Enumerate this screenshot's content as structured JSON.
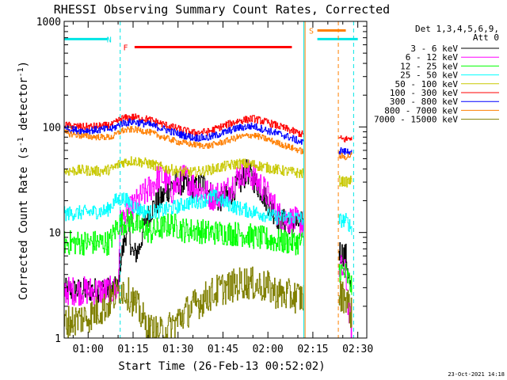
{
  "chart_data": {
    "type": "line",
    "title": "RHESSI Observing Summary Count Rates, Corrected",
    "xlabel": "Start Time (26-Feb-13 00:52:02)",
    "ylabel": "Corrected Count Rate (s^-1 detector^-1)",
    "ylabel_main": "Corrected Count Rate (s",
    "ylabel_sup1": "-1",
    "ylabel_mid": " detector",
    "ylabel_sup2": "-1",
    "ylabel_end": ")",
    "y_scale": "log",
    "ylim": [
      1,
      1000
    ],
    "xlim_minutes": [
      52.0,
      153.0
    ],
    "x_ticks": [
      {
        "t": 60,
        "label": "01:00"
      },
      {
        "t": 75,
        "label": "01:15"
      },
      {
        "t": 90,
        "label": "01:30"
      },
      {
        "t": 105,
        "label": "01:45"
      },
      {
        "t": 120,
        "label": "02:00"
      },
      {
        "t": 135,
        "label": "02:15"
      },
      {
        "t": 150,
        "label": "02:30"
      }
    ],
    "y_ticks": [
      {
        "v": 1,
        "label": "1"
      },
      {
        "v": 10,
        "label": "10"
      },
      {
        "v": 100,
        "label": "100"
      },
      {
        "v": 1000,
        "label": "1000"
      }
    ],
    "legend_header": [
      "Det 1,3,4,5,6,9,",
      "Att 0"
    ],
    "legend_placement": "right",
    "footer": "23-Oct-2021 14:18",
    "flags": [
      {
        "label": "N",
        "color": "#00e5e5",
        "segments": [
          [
            52.0,
            66.5
          ],
          [
            136.5,
            150.0
          ]
        ],
        "y": 680,
        "label_t": 67.0
      },
      {
        "label": "F",
        "color": "#ff0000",
        "segments": [
          [
            75.5,
            128.0
          ]
        ],
        "y": 570,
        "label_t": 72.5
      },
      {
        "label": "S",
        "color": "#ff7f00",
        "segments": [
          [
            136.5,
            146.0
          ]
        ],
        "y": 820,
        "label_t": 134.5
      }
    ],
    "gaps": [
      [
        132.0,
        143.5
      ]
    ],
    "vlines": [
      {
        "t": 70.7,
        "color": "#00e5e5",
        "dashed": true
      },
      {
        "t": 132.0,
        "color": "#00e5e5",
        "dashed": false
      },
      {
        "t": 132.4,
        "color": "#ff7f00",
        "dashed": false
      },
      {
        "t": 143.5,
        "color": "#ff7f00",
        "dashed": true
      },
      {
        "t": 148.6,
        "color": "#00e5e5",
        "dashed": true
      }
    ],
    "series": [
      {
        "name": "3 - 6 keV",
        "color": "#000000",
        "noise": 0.12,
        "points": [
          [
            52,
            2.8
          ],
          [
            70,
            2.9
          ],
          [
            70.5,
            5
          ],
          [
            72,
            8
          ],
          [
            73,
            12
          ],
          [
            75,
            6
          ],
          [
            77,
            7
          ],
          [
            79,
            13
          ],
          [
            82,
            18
          ],
          [
            85,
            22
          ],
          [
            88,
            28
          ],
          [
            90,
            30
          ],
          [
            93,
            28
          ],
          [
            96,
            26
          ],
          [
            98,
            30
          ],
          [
            100,
            25
          ],
          [
            103,
            20
          ],
          [
            105,
            21
          ],
          [
            108,
            24
          ],
          [
            111,
            30
          ],
          [
            113,
            38
          ],
          [
            115,
            32
          ],
          [
            118,
            24
          ],
          [
            121,
            17
          ],
          [
            124,
            13
          ],
          [
            132,
            12
          ],
          [
            146,
            6
          ],
          [
            148,
            2.3
          ]
        ]
      },
      {
        "name": "6 - 12 keV",
        "color": "#ff00ff",
        "noise": 0.14,
        "points": [
          [
            52,
            2.8
          ],
          [
            70,
            2.8
          ],
          [
            70.5,
            12
          ],
          [
            74,
            16
          ],
          [
            78,
            22
          ],
          [
            81,
            27
          ],
          [
            84,
            35
          ],
          [
            86,
            30
          ],
          [
            88,
            25
          ],
          [
            92,
            34
          ],
          [
            95,
            28
          ],
          [
            98,
            25
          ],
          [
            101,
            22
          ],
          [
            104,
            23
          ],
          [
            107,
            26
          ],
          [
            110,
            34
          ],
          [
            112,
            38
          ],
          [
            115,
            34
          ],
          [
            118,
            27
          ],
          [
            121,
            20
          ],
          [
            124,
            14
          ],
          [
            132,
            12
          ],
          [
            146,
            4
          ],
          [
            147,
            1.7
          ],
          [
            148,
            1.2
          ]
        ]
      },
      {
        "name": "12 - 25 keV",
        "color": "#00ff00",
        "noise": 0.12,
        "points": [
          [
            52,
            8
          ],
          [
            67,
            8
          ],
          [
            70,
            12
          ],
          [
            74,
            13
          ],
          [
            78,
            11
          ],
          [
            81,
            10
          ],
          [
            84,
            11
          ],
          [
            88,
            12
          ],
          [
            92,
            10.5
          ],
          [
            96,
            10.5
          ],
          [
            100,
            10
          ],
          [
            104,
            10
          ],
          [
            108,
            9.8
          ],
          [
            112,
            9.6
          ],
          [
            116,
            9
          ],
          [
            120,
            8.6
          ],
          [
            124,
            8.2
          ],
          [
            132,
            8
          ],
          [
            146,
            4
          ],
          [
            148,
            3
          ]
        ]
      },
      {
        "name": "25 - 50 keV",
        "color": "#00ffff",
        "noise": 0.07,
        "points": [
          [
            52,
            15
          ],
          [
            66,
            16
          ],
          [
            69,
            20
          ],
          [
            72,
            21
          ],
          [
            76,
            17
          ],
          [
            80,
            15.5
          ],
          [
            84,
            16
          ],
          [
            88,
            17
          ],
          [
            93,
            19
          ],
          [
            98,
            20
          ],
          [
            102,
            22
          ],
          [
            106,
            19
          ],
          [
            110,
            17
          ],
          [
            114,
            16
          ],
          [
            118,
            15
          ],
          [
            122,
            14
          ],
          [
            126,
            14
          ],
          [
            132,
            13.5
          ],
          [
            146,
            13
          ],
          [
            148,
            11
          ]
        ]
      },
      {
        "name": "50 - 100 keV",
        "color": "#c8c800",
        "noise": 0.05,
        "points": [
          [
            52,
            38
          ],
          [
            58,
            39
          ],
          [
            64,
            38
          ],
          [
            68,
            40
          ],
          [
            71,
            46
          ],
          [
            75,
            48
          ],
          [
            80,
            45
          ],
          [
            85,
            41
          ],
          [
            90,
            38
          ],
          [
            95,
            37
          ],
          [
            100,
            39
          ],
          [
            105,
            42
          ],
          [
            110,
            45
          ],
          [
            115,
            44
          ],
          [
            120,
            41
          ],
          [
            126,
            38
          ],
          [
            132,
            36
          ],
          [
            146,
            30
          ],
          [
            148,
            31
          ]
        ]
      },
      {
        "name": "100 - 300 keV",
        "color": "#ff0000",
        "noise": 0.035,
        "points": [
          [
            52,
            104
          ],
          [
            58,
            100
          ],
          [
            64,
            102
          ],
          [
            68,
            104
          ],
          [
            71,
            120
          ],
          [
            75,
            124
          ],
          [
            80,
            118
          ],
          [
            85,
            106
          ],
          [
            90,
            96
          ],
          [
            95,
            88
          ],
          [
            100,
            90
          ],
          [
            105,
            102
          ],
          [
            110,
            114
          ],
          [
            115,
            120
          ],
          [
            120,
            110
          ],
          [
            126,
            96
          ],
          [
            132,
            84
          ],
          [
            146,
            76
          ],
          [
            148,
            80
          ]
        ]
      },
      {
        "name": "300 - 800 keV",
        "color": "#0000ff",
        "noise": 0.035,
        "points": [
          [
            52,
            96
          ],
          [
            58,
            92
          ],
          [
            64,
            94
          ],
          [
            68,
            96
          ],
          [
            71,
            108
          ],
          [
            75,
            112
          ],
          [
            80,
            106
          ],
          [
            85,
            96
          ],
          [
            90,
            86
          ],
          [
            95,
            79
          ],
          [
            100,
            79
          ],
          [
            105,
            88
          ],
          [
            110,
            98
          ],
          [
            115,
            102
          ],
          [
            120,
            92
          ],
          [
            126,
            82
          ],
          [
            132,
            70
          ],
          [
            146,
            58
          ],
          [
            148,
            60
          ]
        ]
      },
      {
        "name": "800 - 7000 keV",
        "color": "#ff7f00",
        "noise": 0.03,
        "points": [
          [
            52,
            88
          ],
          [
            58,
            82
          ],
          [
            64,
            80
          ],
          [
            68,
            80
          ],
          [
            71,
            92
          ],
          [
            75,
            95
          ],
          [
            80,
            90
          ],
          [
            85,
            80
          ],
          [
            90,
            72
          ],
          [
            95,
            68
          ],
          [
            100,
            66
          ],
          [
            105,
            72
          ],
          [
            110,
            80
          ],
          [
            115,
            84
          ],
          [
            120,
            76
          ],
          [
            126,
            66
          ],
          [
            132,
            58
          ],
          [
            146,
            52
          ],
          [
            148,
            54
          ]
        ]
      },
      {
        "name": "7000 - 15000 keV",
        "color": "#808000",
        "noise": 0.16,
        "points": [
          [
            52,
            1.4
          ],
          [
            60,
            1.6
          ],
          [
            66,
            2.0
          ],
          [
            69,
            2.6
          ],
          [
            71,
            3.0
          ],
          [
            74,
            2.5
          ],
          [
            77,
            1.8
          ],
          [
            80,
            1.2
          ],
          [
            84,
            1.1
          ],
          [
            88,
            1.3
          ],
          [
            92,
            1.7
          ],
          [
            96,
            2.1
          ],
          [
            100,
            2.5
          ],
          [
            104,
            2.9
          ],
          [
            108,
            3.1
          ],
          [
            112,
            3.4
          ],
          [
            116,
            3.2
          ],
          [
            120,
            3.0
          ],
          [
            124,
            2.6
          ],
          [
            128,
            2.5
          ],
          [
            132,
            2.4
          ],
          [
            146,
            2.5
          ],
          [
            147,
            2.0
          ],
          [
            148,
            1.6
          ]
        ]
      }
    ]
  }
}
